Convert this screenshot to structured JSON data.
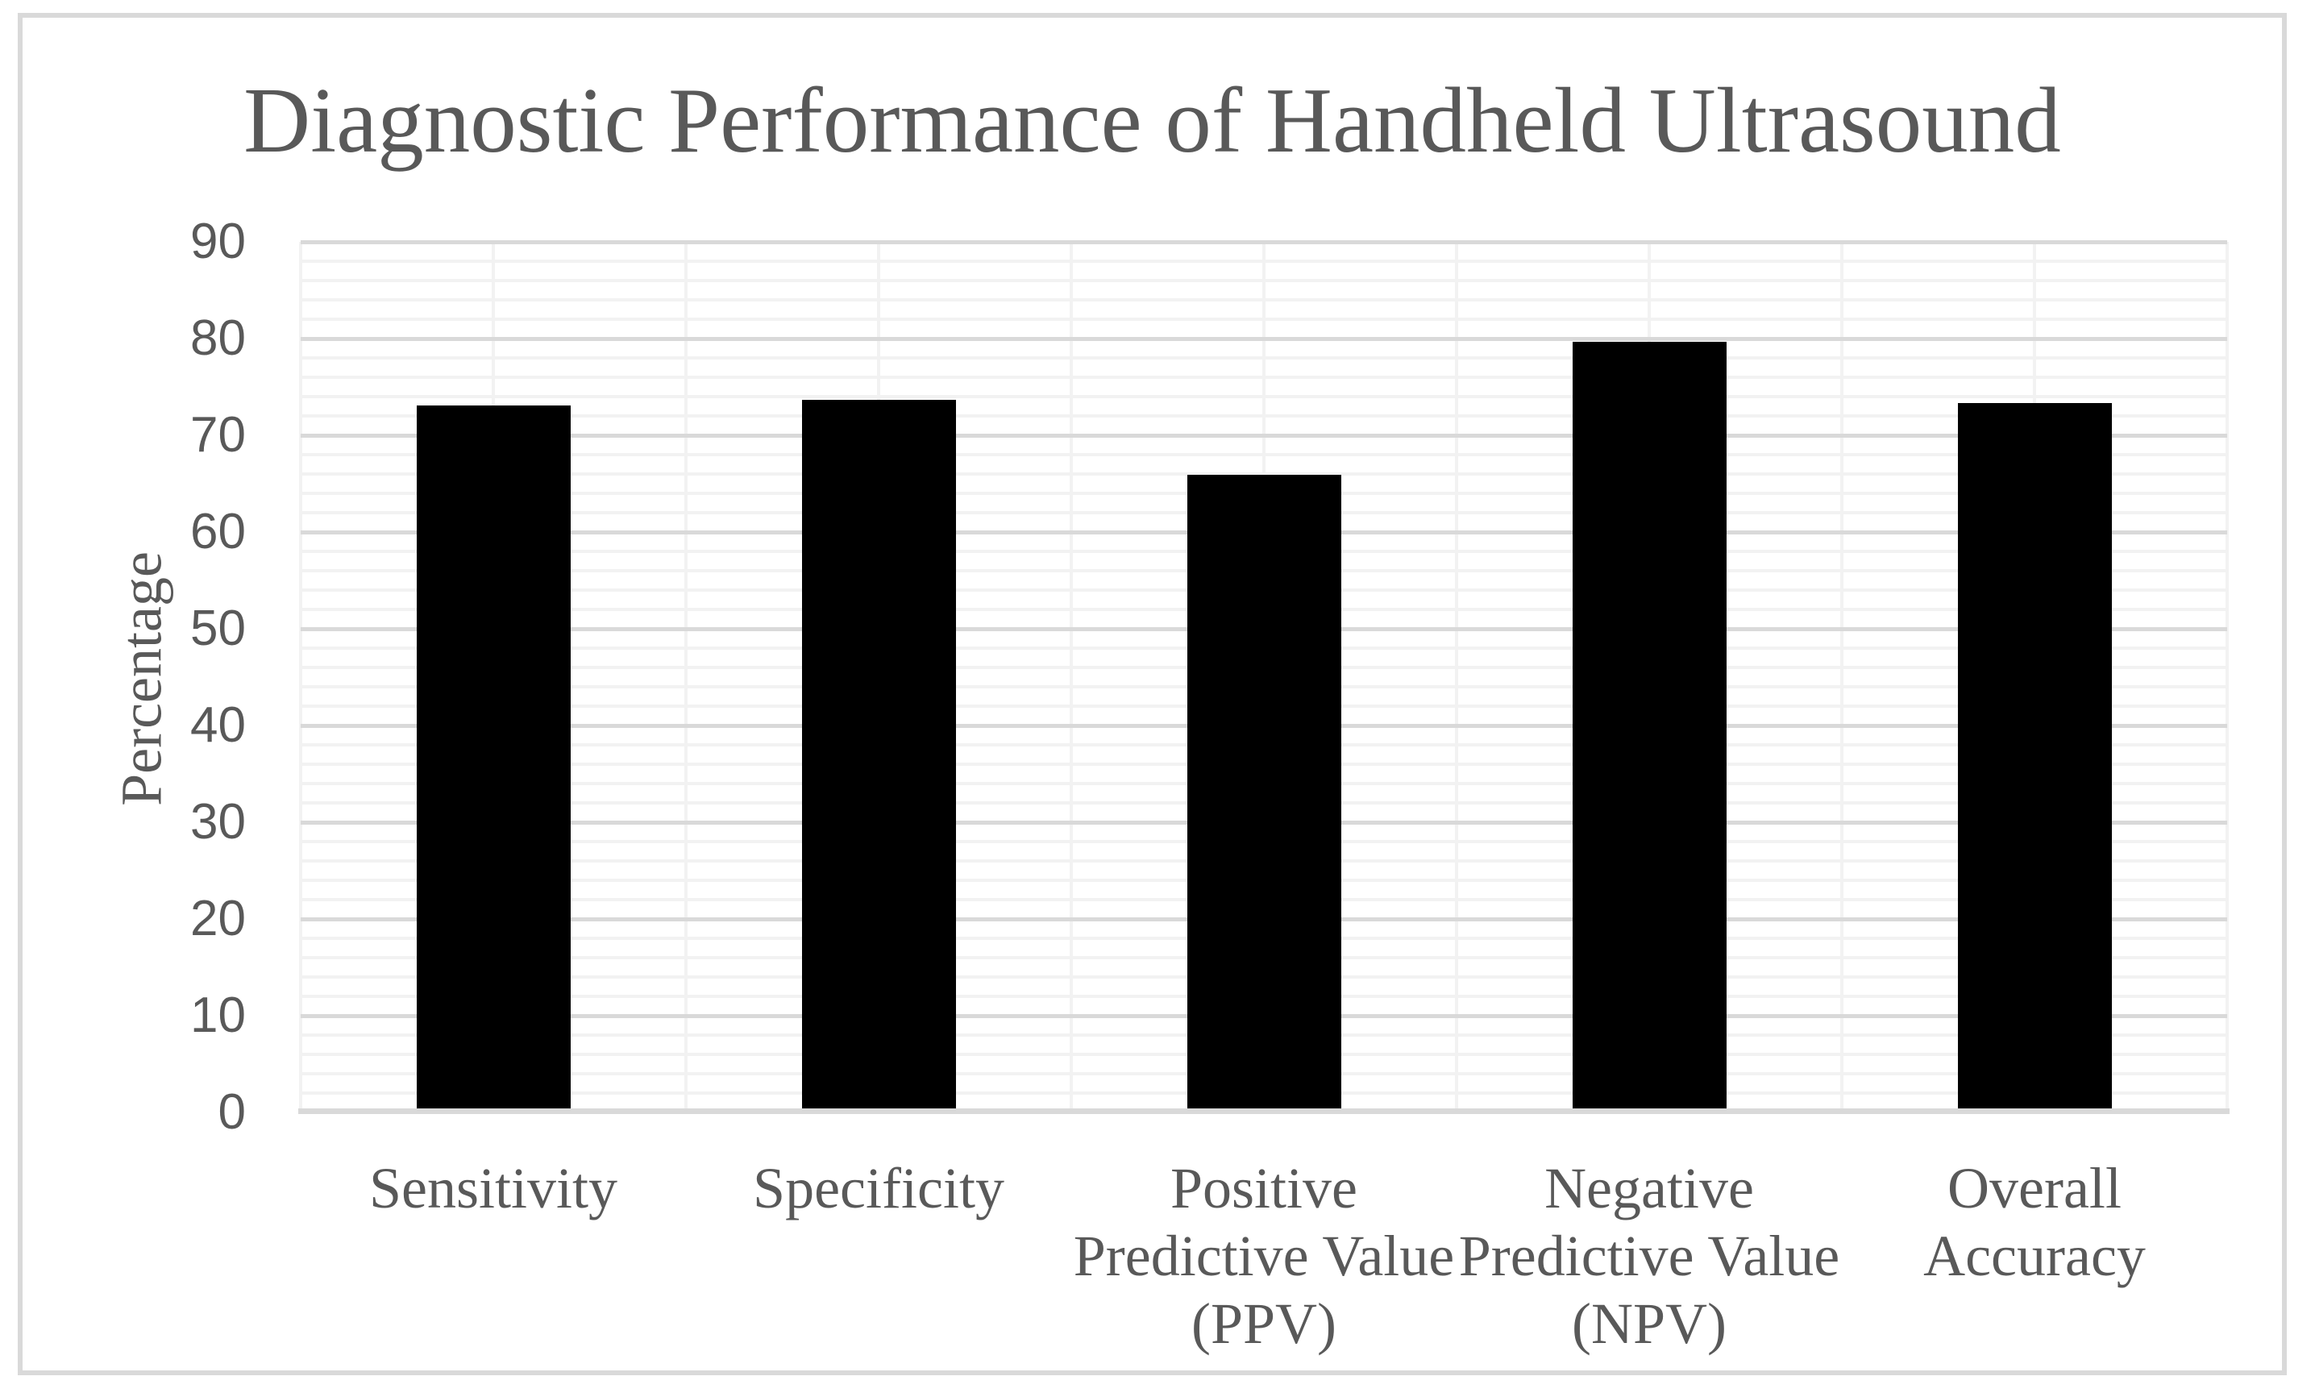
{
  "chart_data": {
    "type": "bar",
    "title": "Diagnostic Performance of Handheld Ultrasound",
    "ylabel": "Percentage",
    "xlabel": "",
    "categories": [
      "Sensitivity",
      "Specificity",
      "Positive Predictive Value (PPV)",
      "Negative Predictive Value (NPV)",
      "Overall Accuracy"
    ],
    "category_label_lines": [
      [
        "Sensitivity"
      ],
      [
        "Specificity"
      ],
      [
        "Positive",
        "Predictive Value",
        "(PPV)"
      ],
      [
        "Negative",
        "Predictive Value",
        "(NPV)"
      ],
      [
        "Overall",
        "Accuracy"
      ]
    ],
    "values": [
      73.1,
      73.7,
      65.9,
      79.7,
      73.3
    ],
    "ylim": [
      0,
      90
    ],
    "y_major_step": 10,
    "y_minor_step": 2,
    "y_tick_labels": [
      "0",
      "10",
      "20",
      "30",
      "40",
      "50",
      "60",
      "70",
      "80",
      "90"
    ],
    "grid": true,
    "legend": "none",
    "colors": {
      "bar": "#000000",
      "major_gridline": "#d9d9d9",
      "minor_gridline": "#f2f2f2",
      "vertical_gridline": "#f2f2f2",
      "axis_line": "#d9d9d9",
      "text": "#595959",
      "frame_border": "#d9d9d9",
      "background": "#ffffff"
    }
  }
}
